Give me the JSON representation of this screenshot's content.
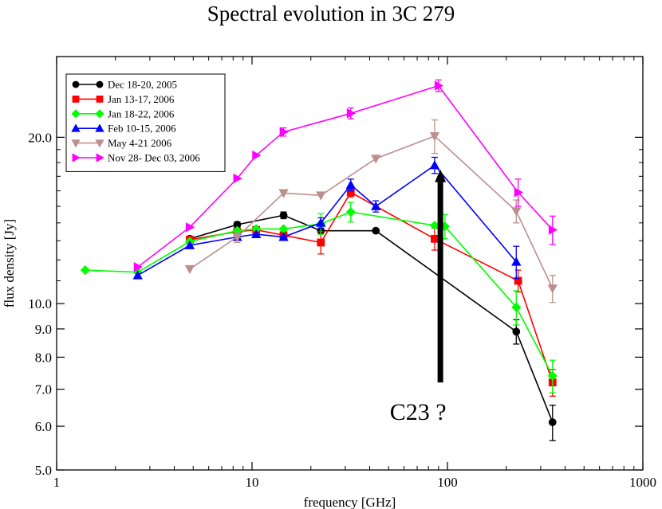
{
  "chart_data": {
    "type": "line",
    "title": "Spectral evolution in 3C 279",
    "xlabel": "frequency [GHz]",
    "ylabel": "flux density [Jy]",
    "xscale": "log",
    "yscale": "log",
    "xlim": [
      1,
      1000
    ],
    "ylim": [
      5,
      28
    ],
    "x_ticks": [
      1,
      10,
      100,
      1000
    ],
    "x_tick_labels": [
      "1",
      "10",
      "100",
      "1000"
    ],
    "y_ticks": [
      5,
      6,
      7,
      8,
      9,
      10,
      20
    ],
    "y_tick_labels": [
      "5.0",
      "6.0",
      "7.0",
      "8.0",
      "9.0",
      "10.0",
      "20.0"
    ],
    "grid": false,
    "legend_position": "top-left",
    "annotation": {
      "text": "C23 ?",
      "arrow_x": 92,
      "arrow_y_from": 7.2,
      "arrow_y_to": 17.5
    },
    "series": [
      {
        "name": "Dec 18-20, 2005",
        "color": "#000000",
        "marker": "circle",
        "points": [
          {
            "x": 4.8,
            "y": 13.1
          },
          {
            "x": 8.4,
            "y": 13.9,
            "err": 0.15
          },
          {
            "x": 14.5,
            "y": 14.45,
            "err": 0.2
          },
          {
            "x": 22.5,
            "y": 13.55
          },
          {
            "x": 43,
            "y": 13.55
          },
          {
            "x": 225,
            "y": 8.9,
            "err": 0.45
          },
          {
            "x": 345,
            "y": 6.1,
            "err": 0.45
          }
        ]
      },
      {
        "name": "Jan  13-17, 2006",
        "color": "#ff0000",
        "marker": "square",
        "points": [
          {
            "x": 4.8,
            "y": 13.05
          },
          {
            "x": 8.4,
            "y": 13.5
          },
          {
            "x": 10.5,
            "y": 13.6
          },
          {
            "x": 14.5,
            "y": 13.3
          },
          {
            "x": 22.5,
            "y": 12.9,
            "err": 0.6
          },
          {
            "x": 32,
            "y": 15.9,
            "err": 0.3
          },
          {
            "x": 86,
            "y": 13.1,
            "err": 0.6
          },
          {
            "x": 230,
            "y": 11.0,
            "err": 0.5
          },
          {
            "x": 345,
            "y": 7.2,
            "err": 0.4
          }
        ]
      },
      {
        "name": "Jan  18-22, 2006",
        "color": "#00ff00",
        "marker": "diamond",
        "points": [
          {
            "x": 1.4,
            "y": 11.5
          },
          {
            "x": 2.6,
            "y": 11.4
          },
          {
            "x": 4.8,
            "y": 12.95
          },
          {
            "x": 8.4,
            "y": 13.55
          },
          {
            "x": 10.5,
            "y": 13.65
          },
          {
            "x": 14.5,
            "y": 13.65
          },
          {
            "x": 22.5,
            "y": 13.95,
            "err": 0.6
          },
          {
            "x": 32,
            "y": 14.65,
            "err": 0.6
          },
          {
            "x": 86,
            "y": 13.85
          },
          {
            "x": 97,
            "y": 13.8,
            "err": 0.7
          },
          {
            "x": 225,
            "y": 9.85,
            "err": 0.7
          },
          {
            "x": 345,
            "y": 7.4,
            "err": 0.5
          }
        ]
      },
      {
        "name": "Feb 10-15, 2006",
        "color": "#0000ff",
        "marker": "triangle-up",
        "points": [
          {
            "x": 2.6,
            "y": 11.25
          },
          {
            "x": 4.8,
            "y": 12.75
          },
          {
            "x": 8.4,
            "y": 13.2
          },
          {
            "x": 10.5,
            "y": 13.35
          },
          {
            "x": 14.5,
            "y": 13.2
          },
          {
            "x": 22.5,
            "y": 14.0,
            "err": 0.3
          },
          {
            "x": 32,
            "y": 16.4,
            "err": 0.4
          },
          {
            "x": 43,
            "y": 15.0,
            "err": 0.35
          },
          {
            "x": 86,
            "y": 17.8,
            "err": 0.6
          },
          {
            "x": 225,
            "y": 11.9,
            "err": 0.8
          }
        ]
      },
      {
        "name": "May 4-21 2006",
        "color": "#bc8f8f",
        "marker": "triangle-down",
        "points": [
          {
            "x": 4.8,
            "y": 11.55
          },
          {
            "x": 8.4,
            "y": 13.2,
            "err": 0.3
          },
          {
            "x": 14.5,
            "y": 15.85
          },
          {
            "x": 22.5,
            "y": 15.7
          },
          {
            "x": 43,
            "y": 18.3
          },
          {
            "x": 86,
            "y": 20.1,
            "err": 1.4
          },
          {
            "x": 225,
            "y": 14.7,
            "err": 0.7
          },
          {
            "x": 345,
            "y": 10.65,
            "err": 0.6
          }
        ]
      },
      {
        "name": "Nov 28- Dec 03, 2006",
        "color": "#ff00ff",
        "marker": "triangle-right",
        "points": [
          {
            "x": 2.6,
            "y": 11.65
          },
          {
            "x": 4.8,
            "y": 13.75
          },
          {
            "x": 8.4,
            "y": 16.85
          },
          {
            "x": 10.5,
            "y": 18.55
          },
          {
            "x": 14.5,
            "y": 20.45,
            "err": 0.35
          },
          {
            "x": 32,
            "y": 22.1,
            "err": 0.5
          },
          {
            "x": 90,
            "y": 24.8,
            "err": 0.6
          },
          {
            "x": 230,
            "y": 15.9,
            "err": 0.9
          },
          {
            "x": 345,
            "y": 13.6,
            "err": 0.8
          }
        ]
      }
    ]
  }
}
